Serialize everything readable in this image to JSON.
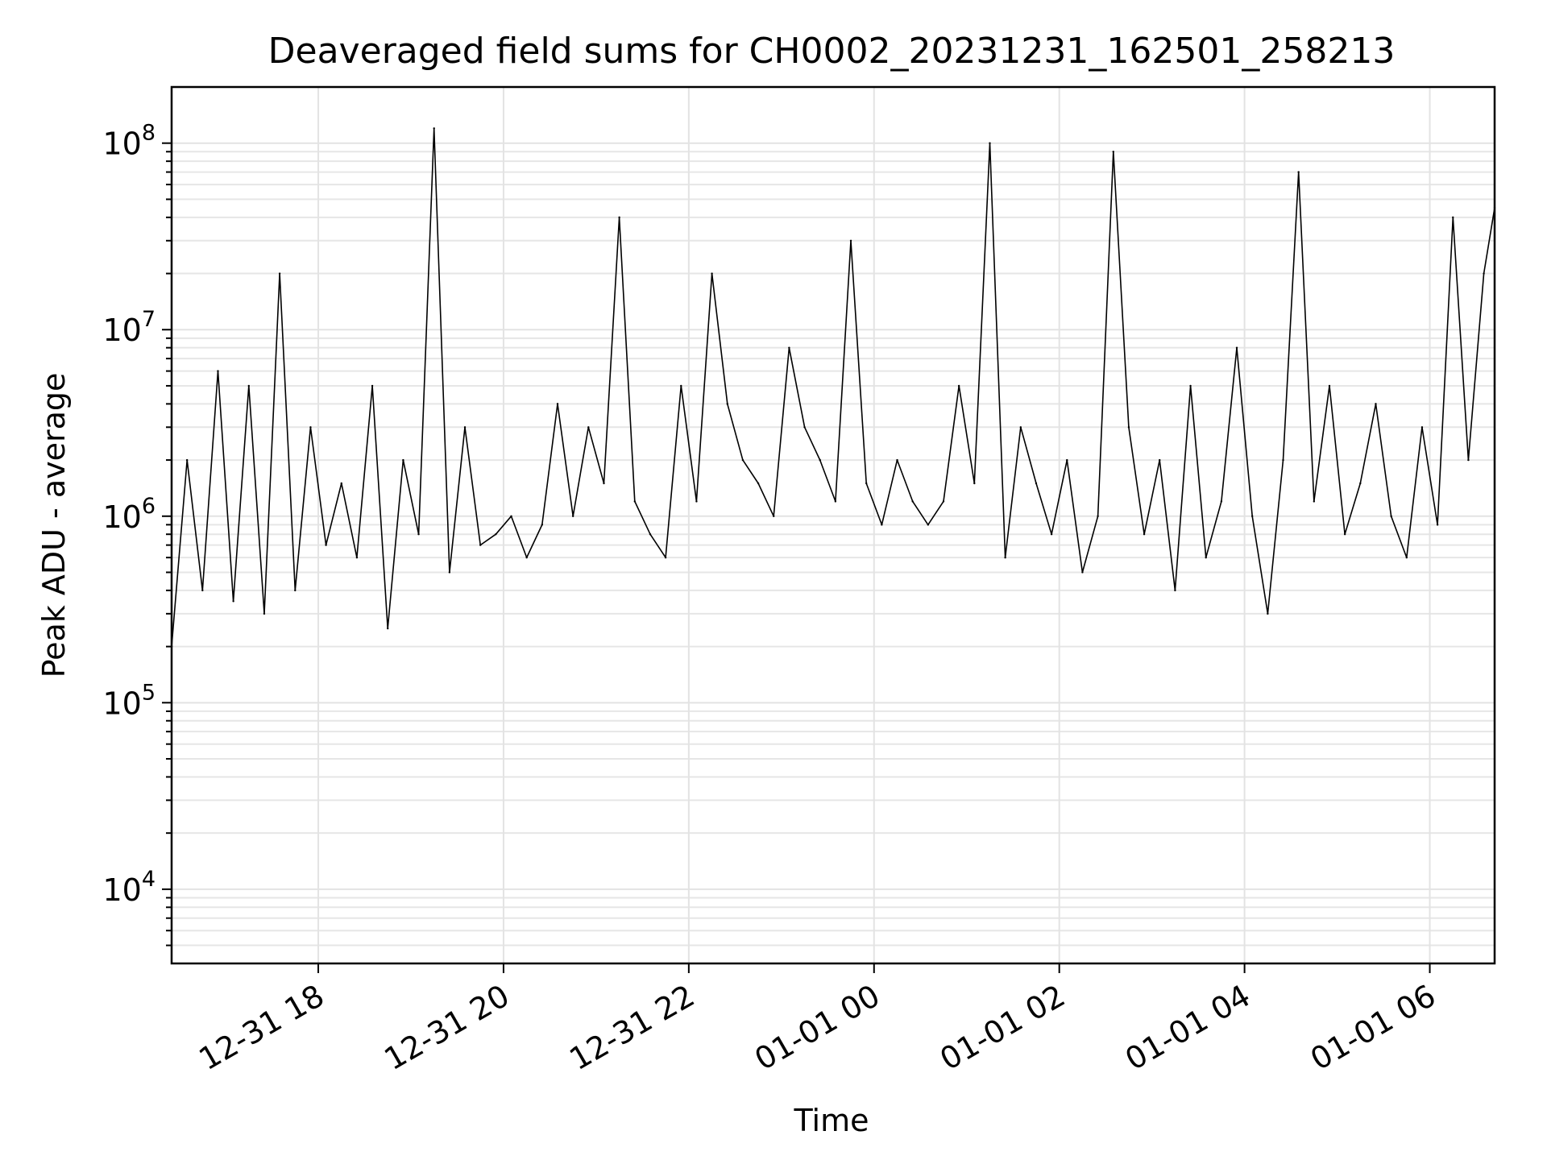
{
  "chart_data": {
    "type": "line",
    "title": "Deaveraged field sums for CH0002_20231231_162501_258213",
    "xlabel": "Time",
    "ylabel": "Peak ADU - average",
    "yscale": "log",
    "ylim": [
      4000,
      200000000
    ],
    "xlim": [
      "2023-12-31 16:25",
      "2024-01-01 06:42"
    ],
    "grid": true,
    "line_color": "#000000",
    "x_ticks": [
      {
        "value": "2023-12-31 18:00",
        "label": "12-31 18"
      },
      {
        "value": "2023-12-31 20:00",
        "label": "12-31 20"
      },
      {
        "value": "2023-12-31 22:00",
        "label": "12-31 22"
      },
      {
        "value": "2024-01-01 00:00",
        "label": "01-01 00"
      },
      {
        "value": "2024-01-01 02:00",
        "label": "01-01 02"
      },
      {
        "value": "2024-01-01 04:00",
        "label": "01-01 04"
      },
      {
        "value": "2024-01-01 06:00",
        "label": "01-01 06"
      }
    ],
    "y_ticks": [
      {
        "value": 10000,
        "base": "10",
        "exp": "4"
      },
      {
        "value": 100000,
        "base": "10",
        "exp": "5"
      },
      {
        "value": 1000000,
        "base": "10",
        "exp": "6"
      },
      {
        "value": 10000000,
        "base": "10",
        "exp": "7"
      },
      {
        "value": 100000000,
        "base": "10",
        "exp": "8"
      }
    ],
    "series": [
      {
        "x": [
          "2023-12-31 16:25",
          "2023-12-31 16:35",
          "2023-12-31 16:45",
          "2023-12-31 16:55",
          "2023-12-31 17:05",
          "2023-12-31 17:15",
          "2023-12-31 17:25",
          "2023-12-31 17:35",
          "2023-12-31 17:45",
          "2023-12-31 17:55",
          "2023-12-31 18:05",
          "2023-12-31 18:15",
          "2023-12-31 18:25",
          "2023-12-31 18:35",
          "2023-12-31 18:45",
          "2023-12-31 18:55",
          "2023-12-31 19:05",
          "2023-12-31 19:15",
          "2023-12-31 19:25",
          "2023-12-31 19:35",
          "2023-12-31 19:45",
          "2023-12-31 19:55",
          "2023-12-31 20:05",
          "2023-12-31 20:15",
          "2023-12-31 20:25",
          "2023-12-31 20:35",
          "2023-12-31 20:45",
          "2023-12-31 20:55",
          "2023-12-31 21:05",
          "2023-12-31 21:15",
          "2023-12-31 21:25",
          "2023-12-31 21:35",
          "2023-12-31 21:45",
          "2023-12-31 21:55",
          "2023-12-31 22:05",
          "2023-12-31 22:15",
          "2023-12-31 22:25",
          "2023-12-31 22:35",
          "2023-12-31 22:45",
          "2023-12-31 22:55",
          "2023-12-31 23:05",
          "2023-12-31 23:15",
          "2023-12-31 23:25",
          "2023-12-31 23:35",
          "2023-12-31 23:45",
          "2023-12-31 23:55",
          "2024-01-01 00:05",
          "2024-01-01 00:15",
          "2024-01-01 00:25",
          "2024-01-01 00:35",
          "2024-01-01 00:45",
          "2024-01-01 00:55",
          "2024-01-01 01:05",
          "2024-01-01 01:15",
          "2024-01-01 01:25",
          "2024-01-01 01:35",
          "2024-01-01 01:45",
          "2024-01-01 01:55",
          "2024-01-01 02:05",
          "2024-01-01 02:15",
          "2024-01-01 02:25",
          "2024-01-01 02:35",
          "2024-01-01 02:45",
          "2024-01-01 02:55",
          "2024-01-01 03:05",
          "2024-01-01 03:15",
          "2024-01-01 03:25",
          "2024-01-01 03:35",
          "2024-01-01 03:45",
          "2024-01-01 03:55",
          "2024-01-01 04:05",
          "2024-01-01 04:15",
          "2024-01-01 04:25",
          "2024-01-01 04:35",
          "2024-01-01 04:45",
          "2024-01-01 04:55",
          "2024-01-01 05:05",
          "2024-01-01 05:15",
          "2024-01-01 05:25",
          "2024-01-01 05:35",
          "2024-01-01 05:45",
          "2024-01-01 05:55",
          "2024-01-01 06:05",
          "2024-01-01 06:15",
          "2024-01-01 06:25",
          "2024-01-01 06:35",
          "2024-01-01 06:42"
        ],
        "y": [
          200000,
          2000000,
          400000,
          6000000,
          350000,
          5000000,
          300000,
          20000000,
          400000,
          3000000,
          700000,
          1500000,
          600000,
          5000000,
          250000,
          2000000,
          800000,
          120000000,
          500000,
          3000000,
          700000,
          800000,
          1000000,
          600000,
          900000,
          4000000,
          1000000,
          3000000,
          1500000,
          40000000,
          1200000,
          800000,
          600000,
          5000000,
          1200000,
          20000000,
          4000000,
          2000000,
          1500000,
          1000000,
          8000000,
          3000000,
          2000000,
          1200000,
          30000000,
          1500000,
          900000,
          2000000,
          1200000,
          900000,
          1200000,
          5000000,
          1500000,
          100000000,
          600000,
          3000000,
          1500000,
          800000,
          2000000,
          500000,
          1000000,
          90000000,
          3000000,
          800000,
          2000000,
          400000,
          5000000,
          600000,
          1200000,
          8000000,
          1000000,
          300000,
          2000000,
          70000000,
          1200000,
          5000000,
          800000,
          1500000,
          4000000,
          1000000,
          600000,
          3000000,
          900000,
          40000000,
          2000000,
          20000000,
          45000000
        ]
      }
    ]
  }
}
